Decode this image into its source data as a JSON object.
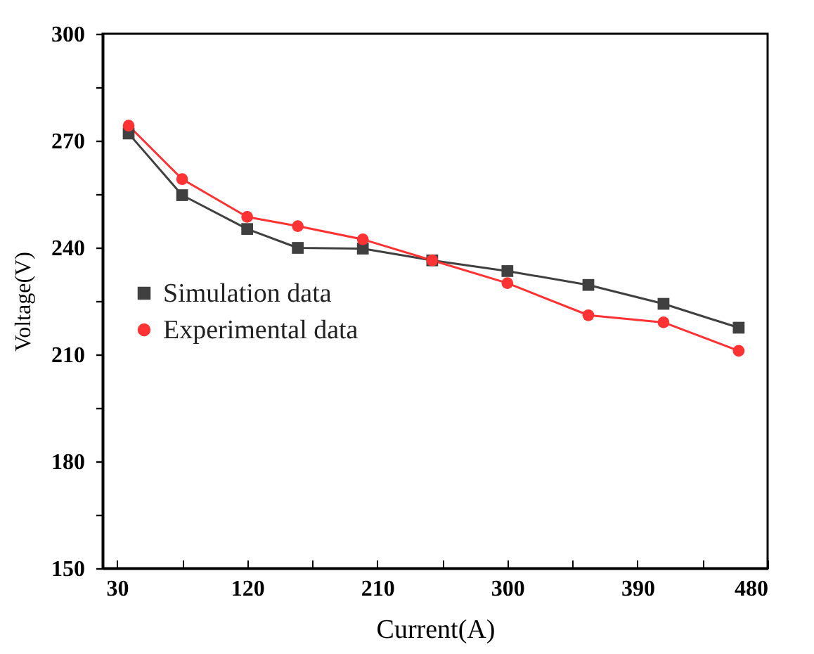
{
  "chart_data": {
    "type": "line",
    "xlabel": "Current(A)",
    "ylabel": "Voltage(V)",
    "x": [
      38,
      75,
      120,
      155,
      200,
      248,
      300,
      356,
      408,
      460
    ],
    "series": [
      {
        "name": "Simulation data",
        "color": "#404040",
        "marker": "square",
        "values": [
          272,
          254.7,
          245.2,
          239.9,
          239.7,
          236.4,
          233.4,
          229.5,
          224.2,
          217.5
        ]
      },
      {
        "name": "Experimental data",
        "color": "#ff3333",
        "marker": "circle",
        "values": [
          274.2,
          259.2,
          248.6,
          246,
          242.3,
          236.4,
          230,
          221,
          219,
          211
        ]
      }
    ],
    "xlim": [
      20,
      480
    ],
    "ylim": [
      150,
      300
    ],
    "xticks": [
      30,
      {
        "value": 75,
        "label": null
      },
      120,
      {
        "value": 165,
        "label": null
      },
      210,
      {
        "value": 255,
        "label": null
      },
      300,
      {
        "value": 345,
        "label": null
      },
      390,
      {
        "value": 435,
        "label": null
      },
      480
    ],
    "yticks": [
      150,
      {
        "value": 165,
        "label": null
      },
      180,
      {
        "value": 195,
        "label": null
      },
      210,
      {
        "value": 225,
        "label": null
      },
      240,
      {
        "value": 255,
        "label": null
      },
      270,
      {
        "value": 285,
        "label": null
      },
      300
    ],
    "grid": false,
    "legend": "left"
  }
}
